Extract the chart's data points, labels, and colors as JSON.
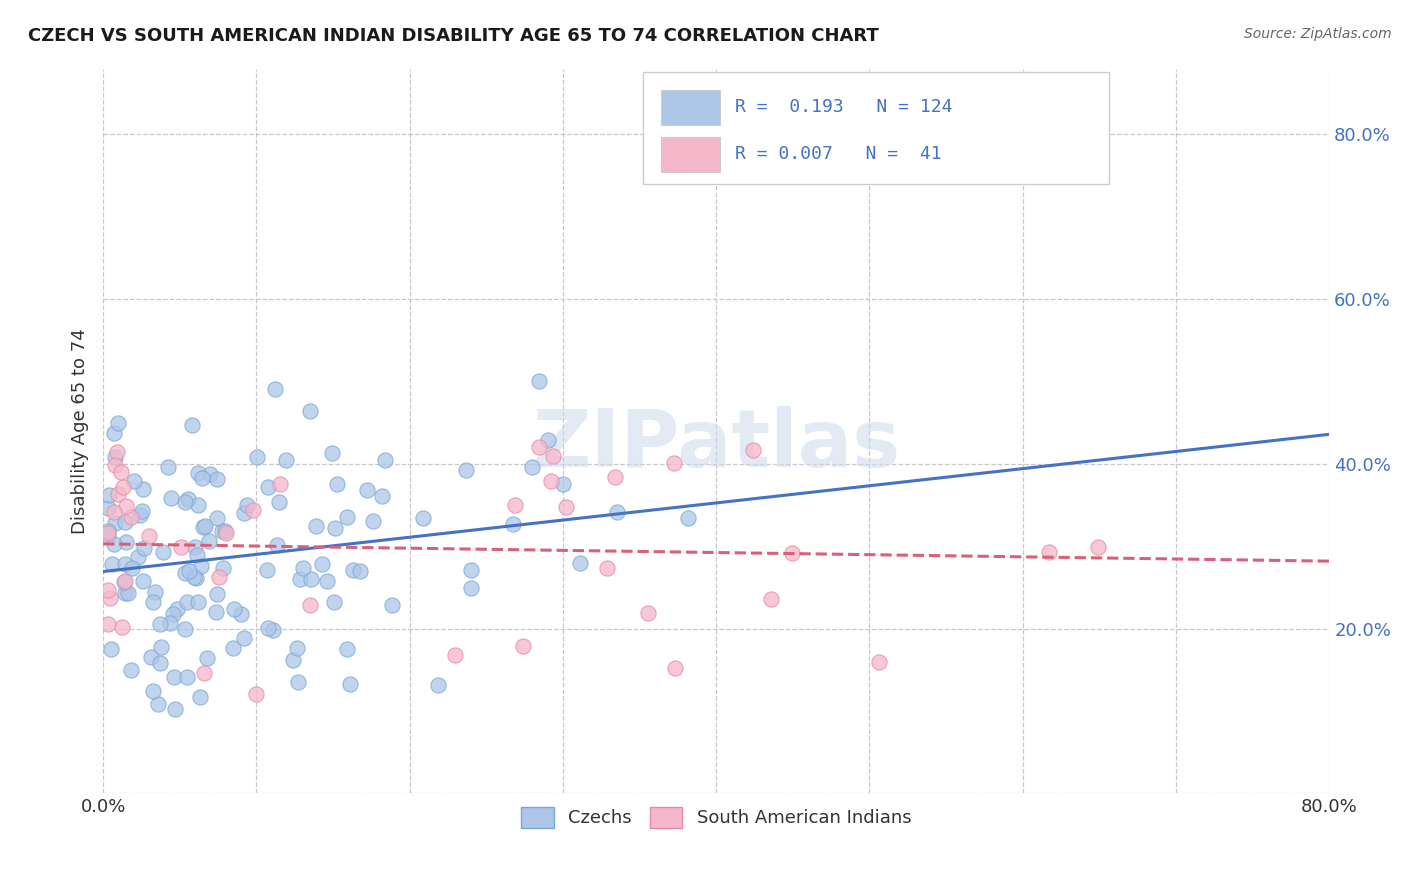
{
  "title": "CZECH VS SOUTH AMERICAN INDIAN DISABILITY AGE 65 TO 74 CORRELATION CHART",
  "source": "Source: ZipAtlas.com",
  "ylabel": "Disability Age 65 to 74",
  "xlim": [
    0.0,
    0.8
  ],
  "ylim": [
    0.0,
    0.88
  ],
  "xticks": [
    0.0,
    0.1,
    0.2,
    0.3,
    0.4,
    0.5,
    0.6,
    0.7,
    0.8
  ],
  "xticklabels": [
    "0.0%",
    "",
    "",
    "",
    "",
    "",
    "",
    "",
    "80.0%"
  ],
  "yticks": [
    0.0,
    0.2,
    0.4,
    0.6,
    0.8
  ],
  "legend_R1": "0.193",
  "legend_N1": "124",
  "legend_R2": "0.007",
  "legend_N2": "41",
  "czech_color": "#adc6e8",
  "czech_edge_color": "#7aa8d4",
  "sai_color": "#f5b8cb",
  "sai_edge_color": "#e888aa",
  "czech_line_color": "#4472c4",
  "sai_line_color": "#d9607a",
  "tick_label_color": "#4472c4",
  "background_color": "#ffffff",
  "grid_color": "#c8c8c8",
  "watermark": "ZIPatlas",
  "czech_R": 0.193,
  "sai_R": 0.007,
  "czech_N": 124,
  "sai_N": 41
}
